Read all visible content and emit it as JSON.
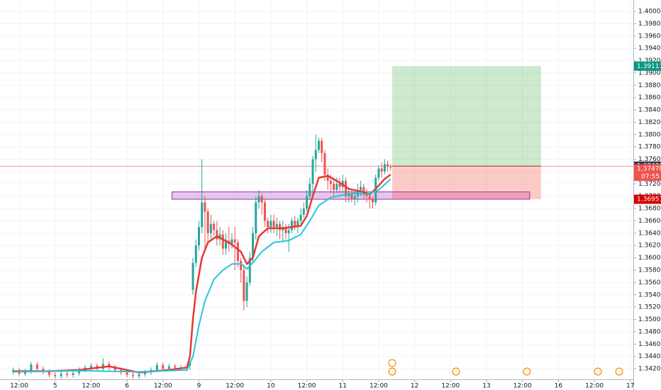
{
  "chart_data": {
    "type": "candlestick",
    "up_color": "#26a69a",
    "down_color": "#ef5350",
    "xlim": [
      -6.4,
      205
    ],
    "ylim": [
      1.34028,
      1.40184
    ],
    "grid": true,
    "xticks": [
      {
        "value": 0,
        "label": "12:00"
      },
      {
        "value": 12,
        "label": "5"
      },
      {
        "value": 24,
        "label": "12:00"
      },
      {
        "value": 36,
        "label": "6"
      },
      {
        "value": 48,
        "label": "12:00"
      },
      {
        "value": 60,
        "label": "9"
      },
      {
        "value": 72,
        "label": "12:00"
      },
      {
        "value": 84,
        "label": "10"
      },
      {
        "value": 96,
        "label": "12:00"
      },
      {
        "value": 108,
        "label": "11"
      },
      {
        "value": 120,
        "label": "12:00"
      },
      {
        "value": 132,
        "label": "12"
      },
      {
        "value": 144,
        "label": "12:00"
      },
      {
        "value": 156,
        "label": "13"
      },
      {
        "value": 168,
        "label": "12:00"
      },
      {
        "value": 180,
        "label": "16"
      },
      {
        "value": 192,
        "label": "12:00"
      },
      {
        "value": 204,
        "label": "17"
      }
    ],
    "yticks": [
      {
        "value": 1.342,
        "label": "1.34200"
      },
      {
        "value": 1.344,
        "label": "1.34400"
      },
      {
        "value": 1.346,
        "label": "1.34600"
      },
      {
        "value": 1.348,
        "label": "1.34800"
      },
      {
        "value": 1.35,
        "label": "1.35000"
      },
      {
        "value": 1.352,
        "label": "1.35200"
      },
      {
        "value": 1.354,
        "label": "1.35400"
      },
      {
        "value": 1.356,
        "label": "1.35600"
      },
      {
        "value": 1.358,
        "label": "1.35800"
      },
      {
        "value": 1.36,
        "label": "1.36000"
      },
      {
        "value": 1.362,
        "label": "1.36200"
      },
      {
        "value": 1.364,
        "label": "1.36400"
      },
      {
        "value": 1.366,
        "label": "1.36600"
      },
      {
        "value": 1.368,
        "label": "1.36800"
      },
      {
        "value": 1.37,
        "label": "1.37000"
      },
      {
        "value": 1.372,
        "label": "1.37200"
      },
      {
        "value": 1.374,
        "label": "1.37400"
      },
      {
        "value": 1.376,
        "label": "1.37600"
      },
      {
        "value": 1.378,
        "label": "1.37800"
      },
      {
        "value": 1.38,
        "label": "1.38000"
      },
      {
        "value": 1.382,
        "label": "1.38200"
      },
      {
        "value": 1.384,
        "label": "1.38400"
      },
      {
        "value": 1.386,
        "label": "1.38600"
      },
      {
        "value": 1.388,
        "label": "1.38800"
      },
      {
        "value": 1.39,
        "label": "1.39000"
      },
      {
        "value": 1.392,
        "label": "1.39200"
      },
      {
        "value": 1.394,
        "label": "1.39400"
      },
      {
        "value": 1.396,
        "label": "1.39600"
      },
      {
        "value": 1.398,
        "label": "1.39800"
      },
      {
        "value": 1.4,
        "label": "1.40000"
      }
    ],
    "x": [
      -2,
      0,
      2,
      4,
      6,
      8,
      10,
      12,
      14,
      16,
      18,
      20,
      22,
      24,
      26,
      28,
      30,
      32,
      34,
      36,
      38,
      40,
      42,
      44,
      46,
      48,
      50,
      52,
      54,
      56,
      57,
      58,
      59,
      60,
      61,
      62,
      63,
      64,
      65,
      66,
      67,
      68,
      69,
      70,
      71,
      72,
      73,
      74,
      75,
      76,
      77,
      78,
      79,
      80,
      81,
      82,
      83,
      84,
      85,
      86,
      87,
      88,
      89,
      90,
      91,
      92,
      93,
      94,
      95,
      96,
      97,
      98,
      99,
      100,
      101,
      102,
      103,
      104,
      105,
      106,
      107,
      108,
      109,
      110,
      111,
      112,
      113,
      114,
      115,
      116,
      117,
      118,
      119,
      120,
      121,
      122,
      123,
      124
    ],
    "open": [
      1.3415,
      1.3418,
      1.3412,
      1.3416,
      1.3427,
      1.342,
      1.3415,
      1.341,
      1.3408,
      1.3412,
      1.341,
      1.3413,
      1.3418,
      1.3422,
      1.3425,
      1.342,
      1.3428,
      1.3422,
      1.3418,
      1.3414,
      1.341,
      1.3408,
      1.3411,
      1.3414,
      1.3418,
      1.3426,
      1.342,
      1.3424,
      1.3422,
      1.342,
      1.3425,
      1.3548,
      1.3592,
      1.362,
      1.365,
      1.369,
      1.3675,
      1.364,
      1.3655,
      1.3645,
      1.363,
      1.3638,
      1.3615,
      1.3628,
      1.3622,
      1.363,
      1.3625,
      1.3595,
      1.358,
      1.353,
      1.356,
      1.36,
      1.364,
      1.369,
      1.37,
      1.369,
      1.366,
      1.365,
      1.366,
      1.365,
      1.3655,
      1.3645,
      1.365,
      1.364,
      1.3645,
      1.366,
      1.365,
      1.366,
      1.367,
      1.368,
      1.37,
      1.372,
      1.376,
      1.3775,
      1.379,
      1.377,
      1.3735,
      1.3725,
      1.372,
      1.371,
      1.372,
      1.3715,
      1.3725,
      1.37,
      1.3705,
      1.3695,
      1.37,
      1.371,
      1.3715,
      1.3705,
      1.37,
      1.3695,
      1.369,
      1.373,
      1.3745,
      1.374,
      1.3752,
      1.3748
    ],
    "high": [
      1.3422,
      1.3422,
      1.342,
      1.3431,
      1.3431,
      1.3424,
      1.3419,
      1.3414,
      1.3416,
      1.3416,
      1.3417,
      1.3422,
      1.3426,
      1.3429,
      1.3429,
      1.3437,
      1.3432,
      1.3426,
      1.3422,
      1.3418,
      1.3414,
      1.3415,
      1.3418,
      1.3422,
      1.343,
      1.343,
      1.3428,
      1.3428,
      1.3426,
      1.3426,
      1.3432,
      1.36,
      1.363,
      1.366,
      1.376,
      1.37,
      1.368,
      1.367,
      1.366,
      1.366,
      1.365,
      1.3645,
      1.364,
      1.365,
      1.364,
      1.365,
      1.363,
      1.36,
      1.359,
      1.357,
      1.361,
      1.365,
      1.37,
      1.371,
      1.3705,
      1.3695,
      1.3665,
      1.367,
      1.367,
      1.3665,
      1.366,
      1.366,
      1.3655,
      1.3655,
      1.3665,
      1.3668,
      1.3665,
      1.368,
      1.369,
      1.371,
      1.373,
      1.3765,
      1.38,
      1.3795,
      1.3795,
      1.3775,
      1.3745,
      1.3735,
      1.373,
      1.373,
      1.373,
      1.3735,
      1.373,
      1.3712,
      1.371,
      1.3705,
      1.372,
      1.3725,
      1.372,
      1.3712,
      1.3705,
      1.37,
      1.3735,
      1.375,
      1.3755,
      1.376,
      1.3758,
      1.3752
    ],
    "low": [
      1.3411,
      1.3408,
      1.3408,
      1.3412,
      1.3416,
      1.3411,
      1.3406,
      1.3404,
      1.3404,
      1.3406,
      1.3406,
      1.3409,
      1.3414,
      1.3418,
      1.3416,
      1.3416,
      1.3418,
      1.3414,
      1.341,
      1.3406,
      1.3404,
      1.3404,
      1.3407,
      1.341,
      1.3414,
      1.3416,
      1.3416,
      1.3418,
      1.3418,
      1.3416,
      1.3418,
      1.354,
      1.3585,
      1.3612,
      1.364,
      1.361,
      1.3625,
      1.363,
      1.3635,
      1.362,
      1.362,
      1.3605,
      1.3605,
      1.361,
      1.3615,
      1.358,
      1.3585,
      1.356,
      1.3515,
      1.352,
      1.3555,
      1.359,
      1.363,
      1.368,
      1.367,
      1.365,
      1.364,
      1.364,
      1.364,
      1.3635,
      1.363,
      1.3625,
      1.363,
      1.361,
      1.364,
      1.3645,
      1.364,
      1.3655,
      1.3665,
      1.3675,
      1.3695,
      1.37,
      1.374,
      1.377,
      1.3755,
      1.3725,
      1.371,
      1.3705,
      1.37,
      1.3705,
      1.3705,
      1.3705,
      1.369,
      1.369,
      1.369,
      1.3685,
      1.369,
      1.37,
      1.3695,
      1.369,
      1.368,
      1.368,
      1.3685,
      1.3725,
      1.373,
      1.3735,
      1.374,
      1.3742
    ],
    "close": [
      1.3418,
      1.3412,
      1.3416,
      1.3427,
      1.342,
      1.3415,
      1.341,
      1.3408,
      1.3412,
      1.341,
      1.3413,
      1.3418,
      1.3422,
      1.3425,
      1.342,
      1.3428,
      1.3422,
      1.3418,
      1.3414,
      1.341,
      1.3408,
      1.3411,
      1.3414,
      1.3418,
      1.3426,
      1.342,
      1.3424,
      1.3422,
      1.342,
      1.3422,
      1.343,
      1.3592,
      1.362,
      1.365,
      1.369,
      1.3675,
      1.364,
      1.3655,
      1.3645,
      1.363,
      1.3638,
      1.3615,
      1.3628,
      1.3622,
      1.363,
      1.3625,
      1.3595,
      1.358,
      1.353,
      1.356,
      1.36,
      1.364,
      1.369,
      1.37,
      1.369,
      1.366,
      1.365,
      1.366,
      1.365,
      1.3655,
      1.3645,
      1.365,
      1.364,
      1.3645,
      1.366,
      1.365,
      1.366,
      1.367,
      1.368,
      1.37,
      1.372,
      1.376,
      1.3775,
      1.379,
      1.377,
      1.3735,
      1.3725,
      1.372,
      1.371,
      1.372,
      1.3715,
      1.3725,
      1.37,
      1.3705,
      1.3695,
      1.37,
      1.371,
      1.3715,
      1.3705,
      1.37,
      1.3695,
      1.369,
      1.373,
      1.3745,
      1.374,
      1.3752,
      1.3748,
      1.37478
    ],
    "lines": [
      {
        "color": "#e53935",
        "x": [
          -2,
          10,
          20,
          30,
          40,
          50,
          56,
          57,
          58,
          59,
          61,
          63,
          66,
          70,
          74,
          76,
          78,
          80,
          83,
          88,
          94,
          96,
          98,
          100,
          103,
          106,
          110,
          114,
          117,
          119,
          122,
          124
        ],
        "values": [
          1.3416,
          1.3416,
          1.3418,
          1.3424,
          1.3414,
          1.3418,
          1.3422,
          1.344,
          1.35,
          1.3545,
          1.36,
          1.3625,
          1.3635,
          1.3625,
          1.361,
          1.359,
          1.36,
          1.3635,
          1.3648,
          1.3648,
          1.3652,
          1.3668,
          1.37,
          1.373,
          1.3733,
          1.3725,
          1.3712,
          1.3708,
          1.3703,
          1.3712,
          1.3728,
          1.3735
        ]
      },
      {
        "color": "#26c6da",
        "x": [
          -2,
          20,
          40,
          56,
          58,
          60,
          62,
          65,
          68,
          71,
          74,
          76,
          78,
          81,
          85,
          90,
          94,
          97,
          100,
          104,
          108,
          112,
          116,
          120,
          124
        ],
        "values": [
          1.3415,
          1.3417,
          1.3415,
          1.3418,
          1.344,
          1.349,
          1.353,
          1.3565,
          1.358,
          1.359,
          1.359,
          1.3582,
          1.3592,
          1.361,
          1.3625,
          1.3628,
          1.3638,
          1.366,
          1.3685,
          1.3698,
          1.3702,
          1.3705,
          1.3703,
          1.371,
          1.3728
        ]
      }
    ],
    "zone": {
      "x": [
        51,
        170.4
      ],
      "y": [
        1.36951,
        1.3707
      ],
      "color": "#9c27b0"
    },
    "position": {
      "x": [
        124.5,
        174.2
      ],
      "entry": 1.37489,
      "target": 1.39111,
      "stop": 1.36951
    },
    "last_price": 1.37478,
    "countdown": "07:55"
  }
}
